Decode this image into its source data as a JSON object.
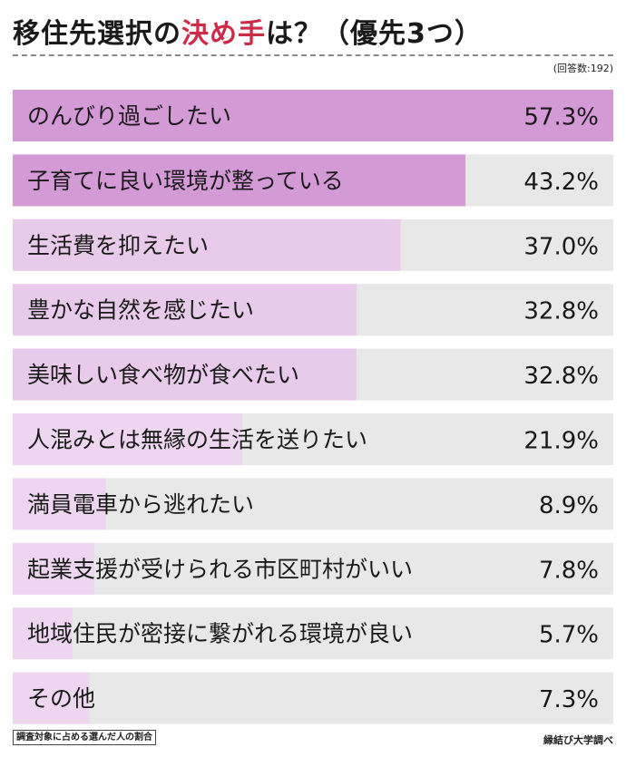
{
  "title": {
    "part1": "移住先選択の",
    "part2": "決め手",
    "part3": "は？（優先3つ）",
    "highlight_color": "#cc2b4a"
  },
  "respondents_note": "(回答数:192)",
  "footnote": "調査対象に占める選んだ人の割合",
  "source": "縁結び大学調べ",
  "colors": {
    "top": "#d49ad6",
    "mid": "#e8caea",
    "low": "#eed6f0",
    "track": "#e8e8e8"
  },
  "chart_data": {
    "type": "bar",
    "orientation": "horizontal",
    "unit": "%",
    "xlim": [
      0,
      57.3
    ],
    "categories": [
      "のんびり過ごしたい",
      "子育てに良い環境が整っている",
      "生活費を抑えたい",
      "豊かな自然を感じたい",
      "美味しい食べ物が食べたい",
      "人混みとは無縁の生活を送りたい",
      "満員電車から逃れたい",
      "起業支援が受けられる市区町村がいい",
      "地域住民が密接に繋がれる環境が良い",
      "その他"
    ],
    "values": [
      57.3,
      43.2,
      37.0,
      32.8,
      32.8,
      21.9,
      8.9,
      7.8,
      5.7,
      7.3
    ],
    "value_labels": [
      "57.3%",
      "43.2%",
      "37.0%",
      "32.8%",
      "32.8%",
      "21.9%",
      "8.9%",
      "7.8%",
      "5.7%",
      "7.3%"
    ]
  }
}
